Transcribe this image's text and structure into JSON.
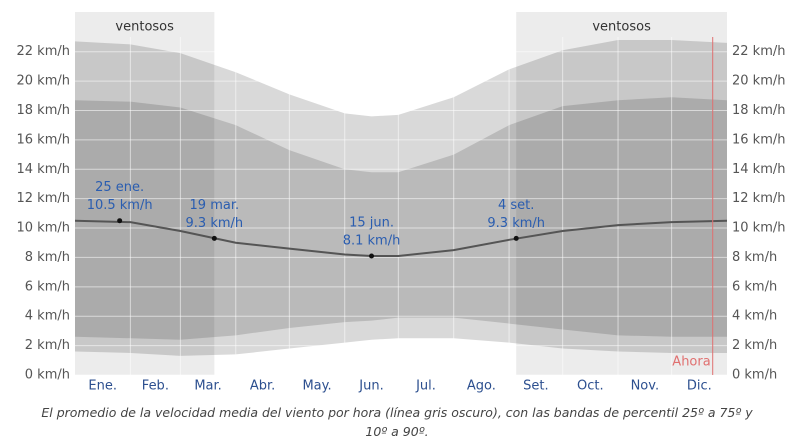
{
  "chart_data": {
    "type": "band",
    "x": [
      0,
      31,
      59,
      90,
      120,
      151,
      166,
      181,
      212,
      243,
      273,
      304,
      334,
      365
    ],
    "xlim": [
      0,
      365
    ],
    "xticks": [
      31,
      59,
      90,
      120,
      151,
      181,
      212,
      243,
      273,
      304,
      334
    ],
    "categories": [
      "Ene.",
      "Feb.",
      "Mar.",
      "Abr.",
      "May.",
      "Jun.",
      "Jul.",
      "Ago.",
      "Set.",
      "Oct.",
      "Nov.",
      "Dic."
    ],
    "ylim": [
      0,
      23
    ],
    "yticks": [
      {
        "value": 0,
        "label": "0 km/h"
      },
      {
        "value": 2,
        "label": "2 km/h"
      },
      {
        "value": 4,
        "label": "4 km/h"
      },
      {
        "value": 6,
        "label": "6 km/h"
      },
      {
        "value": 8,
        "label": "8 km/h"
      },
      {
        "value": 10,
        "label": "10 km/h"
      },
      {
        "value": 12,
        "label": "12 km/h"
      },
      {
        "value": 14,
        "label": "14 km/h"
      },
      {
        "value": 16,
        "label": "16 km/h"
      },
      {
        "value": 18,
        "label": "18 km/h"
      },
      {
        "value": 20,
        "label": "20 km/h"
      },
      {
        "value": 22,
        "label": "22 km/h"
      }
    ],
    "grid": true,
    "bands": [
      {
        "color": "rgba(0,0,0,0.15)",
        "low": [
          1.6,
          1.5,
          1.3,
          1.4,
          1.8,
          2.2,
          2.4,
          2.5,
          2.5,
          2.2,
          1.8,
          1.6,
          1.5,
          1.5
        ],
        "high": [
          22.7,
          22.5,
          21.9,
          20.6,
          19.1,
          17.8,
          17.6,
          17.7,
          18.9,
          20.8,
          22.1,
          22.8,
          22.8,
          22.6
        ]
      },
      {
        "color": "rgba(0,0,0,0.14)",
        "low": [
          2.6,
          2.5,
          2.4,
          2.7,
          3.2,
          3.6,
          3.7,
          3.9,
          3.9,
          3.5,
          3.1,
          2.7,
          2.6,
          2.6
        ],
        "high": [
          18.7,
          18.6,
          18.2,
          17.0,
          15.3,
          14.0,
          13.8,
          13.8,
          15.0,
          17.0,
          18.3,
          18.7,
          18.9,
          18.7
        ]
      }
    ],
    "line": {
      "color": "#555555",
      "values": [
        10.5,
        10.4,
        9.8,
        9.0,
        8.6,
        8.2,
        8.1,
        8.1,
        8.5,
        9.2,
        9.8,
        10.2,
        10.4,
        10.5
      ]
    },
    "annotations": [
      {
        "date": "25 ene.",
        "x": 25,
        "value": 10.5,
        "value_label": "10.5 km/h"
      },
      {
        "date": "19 mar.",
        "x": 78,
        "value": 9.3,
        "value_label": "9.3 km/h"
      },
      {
        "date": "15 jun.",
        "x": 166,
        "value": 8.1,
        "value_label": "8.1 km/h"
      },
      {
        "date": "4 set.",
        "x": 247,
        "value": 9.3,
        "value_label": "9.3 km/h"
      }
    ],
    "windy_periods": [
      {
        "label": "ventosos",
        "start": 0,
        "end": 78
      },
      {
        "label": "ventosos",
        "start": 247,
        "end": 365
      }
    ],
    "now": {
      "label": "Ahora",
      "x": 357,
      "color": "#e07070"
    },
    "caption": "El promedio de la velocidad media del viento por hora (línea gris oscuro), con las bandas de percentil 25º a 75º y 10º a 90º."
  }
}
